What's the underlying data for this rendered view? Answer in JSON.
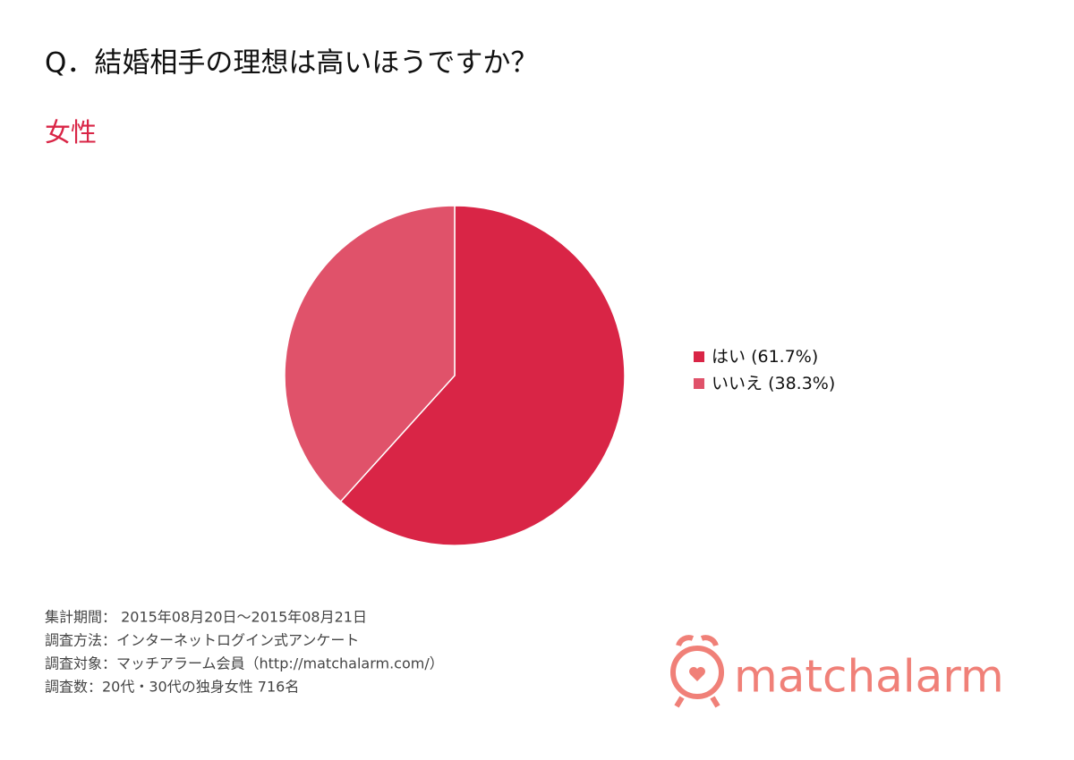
{
  "chart_data": {
    "type": "pie",
    "title": "Q．結婚相手の理想は高いほうですか？",
    "subtitle": "女性",
    "categories": [
      "はい",
      "いいえ"
    ],
    "values": [
      61.7,
      38.3
    ],
    "value_labels": [
      "(61.7%)",
      "(38.3%)"
    ],
    "colors": [
      "#d92546",
      "#e0526a"
    ],
    "legend": "right"
  },
  "notes": [
    "集計期間： 2015年08月20日～2015年08月21日",
    "調査方法：インターネットログイン式アンケート",
    "調査対象：マッチアラーム会員（http://matchalarm.com/）",
    "調査数：20代・30代の独身女性 716名"
  ],
  "logo": "matchalarm"
}
